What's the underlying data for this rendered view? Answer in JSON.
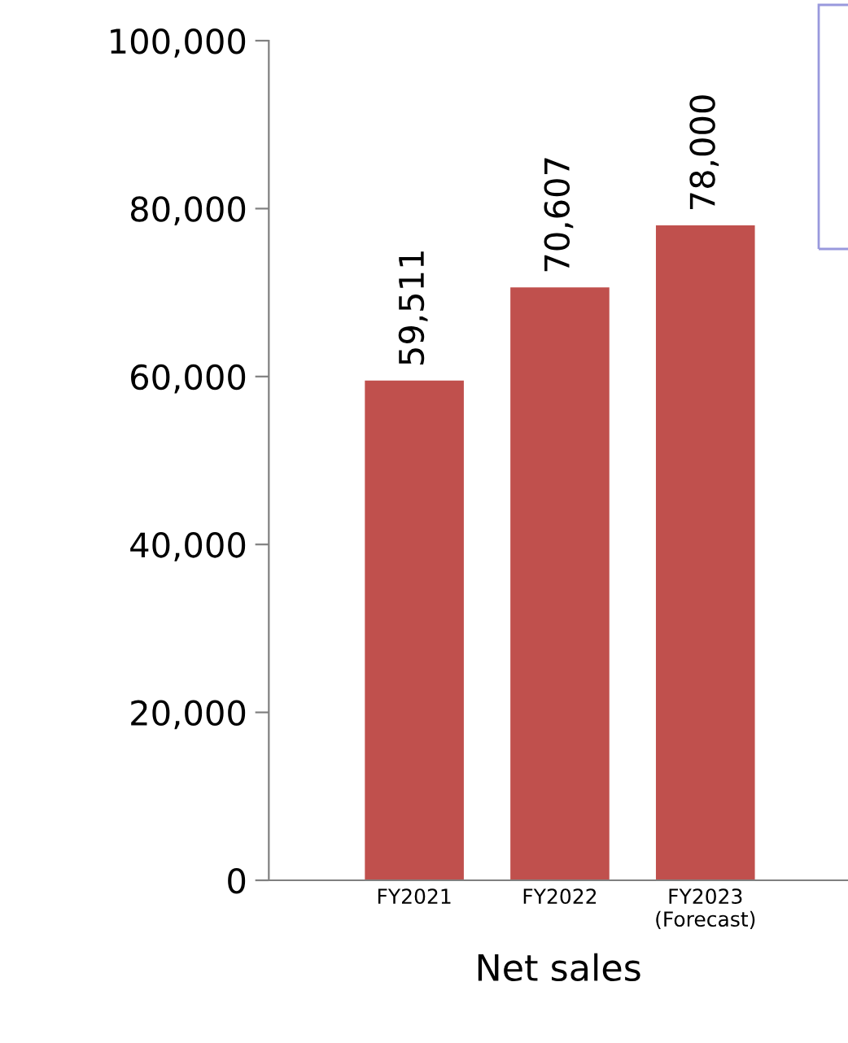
{
  "chart_data": {
    "type": "bar",
    "xlabel": "Net sales",
    "categories": [
      "FY2021",
      "FY2022",
      "FY2023\n(Forecast)"
    ],
    "values": [
      59511,
      70607,
      78000
    ],
    "value_labels": [
      "59,511",
      "70,607",
      "78,000"
    ],
    "colors": [
      "#c0504d",
      "#c0504d",
      "#c0504d"
    ],
    "ylim": [
      0,
      100000
    ],
    "yticks": [
      {
        "value": 0,
        "label": "0"
      },
      {
        "value": 20000,
        "label": "20,000"
      },
      {
        "value": 40000,
        "label": "40,000"
      },
      {
        "value": 60000,
        "label": "60,000"
      },
      {
        "value": 80000,
        "label": "80,000"
      },
      {
        "value": 100000,
        "label": "100,000"
      }
    ],
    "grid": false,
    "legend": false
  }
}
